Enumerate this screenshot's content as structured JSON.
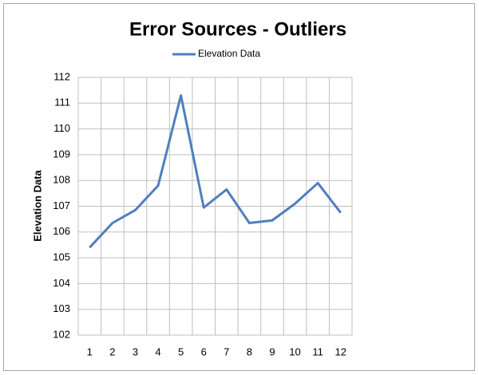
{
  "chart_data": {
    "type": "line",
    "title": "Error Sources - Outliers",
    "y_label": "Elevation Data",
    "categories": [
      "1",
      "2",
      "3",
      "4",
      "5",
      "6",
      "7",
      "8",
      "9",
      "10",
      "11",
      "12"
    ],
    "series": [
      {
        "name": "Elevation Data",
        "color": "#4f7fbe",
        "values": [
          105.4,
          106.35,
          106.85,
          107.8,
          111.3,
          106.95,
          107.65,
          106.35,
          106.45,
          107.1,
          107.9,
          106.75
        ]
      }
    ],
    "ylim": [
      102,
      112
    ],
    "yticks": [
      102,
      103,
      104,
      105,
      106,
      107,
      108,
      109,
      110,
      111,
      112
    ],
    "grid": true,
    "legend": "top"
  }
}
